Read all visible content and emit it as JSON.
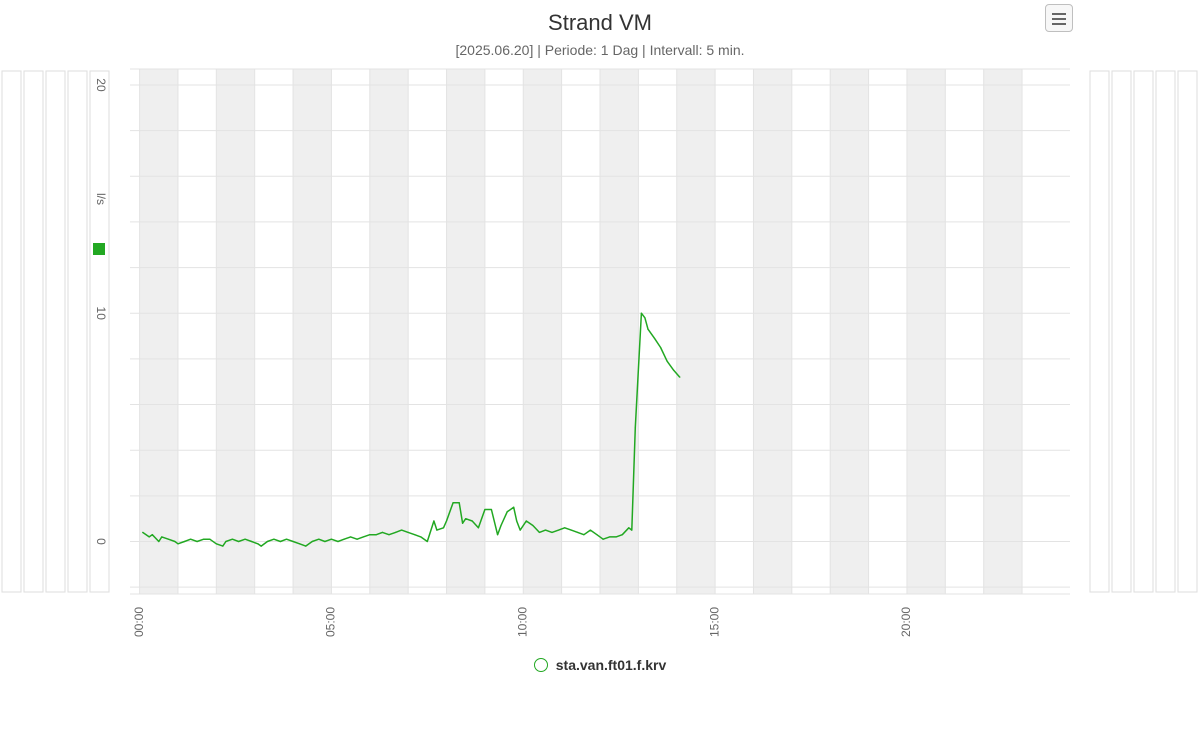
{
  "header": {
    "title": "Strand VM",
    "subtitle": "[2025.06.20] | Periode: 1 Dag | Intervall: 5 min."
  },
  "menu": {
    "icon": "hamburger-icon"
  },
  "colors": {
    "series": "#22a822",
    "band": "#efefef",
    "grid": "#e3e3e3",
    "axis_text": "#666666"
  },
  "legend": {
    "items": [
      {
        "label": "sta.van.ft01.f.krv"
      }
    ]
  },
  "chart_data": {
    "type": "line",
    "title": "Strand VM",
    "subtitle": "[2025.06.20] | Periode: 1 Dag | Intervall: 5 min.",
    "xlabel": "",
    "ylabel": "l/s",
    "x_unit": "hours",
    "xlim": [
      -0.25,
      24.25
    ],
    "ylim": [
      -2.3,
      20.7
    ],
    "x_ticks": [
      {
        "value": 0,
        "label": "00:00"
      },
      {
        "value": 5,
        "label": "05:00"
      },
      {
        "value": 10,
        "label": "10:00"
      },
      {
        "value": 15,
        "label": "15:00"
      },
      {
        "value": 20,
        "label": "20:00"
      }
    ],
    "y_ticks": [
      {
        "value": 0,
        "label": "0"
      },
      {
        "value": 10,
        "label": "10"
      },
      {
        "value": 20,
        "label": "20"
      }
    ],
    "grid": true,
    "legend_position": "bottom-center",
    "series": [
      {
        "name": "sta.van.ft01.f.krv",
        "color": "#22a822",
        "x": [
          0.08,
          0.25,
          0.33,
          0.5,
          0.58,
          0.75,
          0.92,
          1.0,
          1.17,
          1.33,
          1.5,
          1.67,
          1.83,
          2.0,
          2.17,
          2.25,
          2.42,
          2.58,
          2.75,
          2.92,
          3.08,
          3.17,
          3.33,
          3.5,
          3.67,
          3.83,
          4.0,
          4.17,
          4.33,
          4.5,
          4.67,
          4.83,
          5.0,
          5.17,
          5.33,
          5.5,
          5.67,
          5.83,
          6.0,
          6.17,
          6.33,
          6.5,
          6.67,
          6.83,
          7.0,
          7.17,
          7.33,
          7.5,
          7.67,
          7.75,
          7.92,
          8.0,
          8.17,
          8.33,
          8.42,
          8.5,
          8.67,
          8.83,
          9.0,
          9.17,
          9.33,
          9.42,
          9.58,
          9.75,
          9.83,
          9.92,
          10.08,
          10.25,
          10.42,
          10.58,
          10.75,
          10.92,
          11.08,
          11.25,
          11.42,
          11.58,
          11.75,
          11.92,
          12.08,
          12.25,
          12.42,
          12.58,
          12.75,
          12.83,
          12.92,
          13.08,
          13.17,
          13.25,
          13.42,
          13.58,
          13.75,
          13.92,
          14.08
        ],
        "values": [
          0.4,
          0.2,
          0.3,
          0.0,
          0.2,
          0.1,
          0.0,
          -0.1,
          0.0,
          0.1,
          0.0,
          0.1,
          0.1,
          -0.1,
          -0.2,
          0.0,
          0.1,
          0.0,
          0.1,
          0.0,
          -0.1,
          -0.2,
          0.0,
          0.1,
          0.0,
          0.1,
          0.0,
          -0.1,
          -0.2,
          0.0,
          0.1,
          0.0,
          0.1,
          0.0,
          0.1,
          0.2,
          0.1,
          0.2,
          0.3,
          0.3,
          0.4,
          0.3,
          0.4,
          0.5,
          0.4,
          0.3,
          0.2,
          0.0,
          0.9,
          0.5,
          0.6,
          0.9,
          1.7,
          1.7,
          0.8,
          1.0,
          0.9,
          0.6,
          1.4,
          1.4,
          0.3,
          0.7,
          1.3,
          1.5,
          0.9,
          0.5,
          0.9,
          0.7,
          0.4,
          0.5,
          0.4,
          0.5,
          0.6,
          0.5,
          0.4,
          0.3,
          0.5,
          0.3,
          0.1,
          0.2,
          0.2,
          0.3,
          0.6,
          0.5,
          5.0,
          10.0,
          9.8,
          9.3,
          8.9,
          8.5,
          7.9,
          7.5,
          7.2
        ]
      }
    ]
  }
}
